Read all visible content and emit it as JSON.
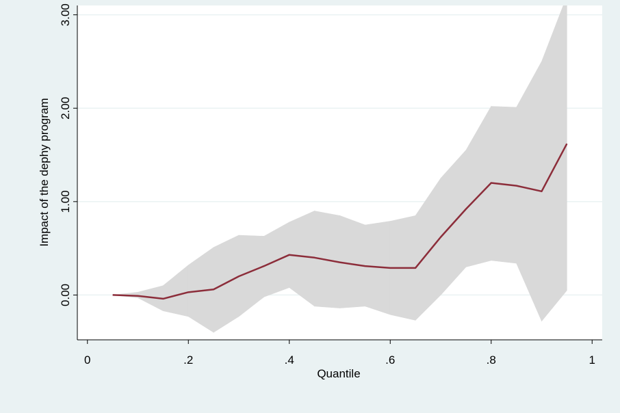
{
  "chart_data": {
    "type": "line",
    "x_label": "Quantile",
    "y_label": "Impact of the dephy program",
    "x": [
      0.05,
      0.1,
      0.15,
      0.2,
      0.25,
      0.3,
      0.35,
      0.4,
      0.45,
      0.5,
      0.55,
      0.6,
      0.65,
      0.7,
      0.75,
      0.8,
      0.85,
      0.9,
      0.95
    ],
    "series": [
      {
        "color": "#8c2d3a",
        "band_color": "#d9d9d9",
        "values": [
          0,
          -0.01,
          -0.04,
          0.03,
          0.06,
          0.2,
          0.31,
          0.43,
          0.4,
          0.35,
          0.31,
          0.29,
          0.29,
          0.62,
          0.92,
          1.2,
          1.17,
          1.11,
          1.62
        ],
        "upper": [
          0,
          0.03,
          0.1,
          0.32,
          0.51,
          0.64,
          0.63,
          0.78,
          0.9,
          0.85,
          0.75,
          0.79,
          0.85,
          1.25,
          1.55,
          2.02,
          2.01,
          2.5,
          3.2
        ],
        "lower": [
          0,
          -0.03,
          -0.17,
          -0.23,
          -0.4,
          -0.23,
          -0.02,
          0.08,
          -0.12,
          -0.14,
          -0.12,
          -0.21,
          -0.27,
          0,
          0.3,
          0.37,
          0.34,
          -0.28,
          0.05
        ]
      }
    ],
    "xlim": [
      -0.02,
      1.02
    ],
    "ylim": [
      -0.48,
      3.1
    ],
    "xticks": [
      0,
      {
        "value": 0.2,
        "label": ".2"
      },
      {
        "value": 0.4,
        "label": ".4"
      },
      {
        "value": 0.6,
        "label": ".6"
      },
      {
        "value": 0.8,
        "label": ".8"
      },
      1
    ],
    "yticks": [
      {
        "value": 0,
        "label": "0.00"
      },
      {
        "value": 1,
        "label": "1.00"
      },
      {
        "value": 2,
        "label": "2.00"
      },
      {
        "value": 3,
        "label": "3.00"
      }
    ],
    "grid": true
  }
}
